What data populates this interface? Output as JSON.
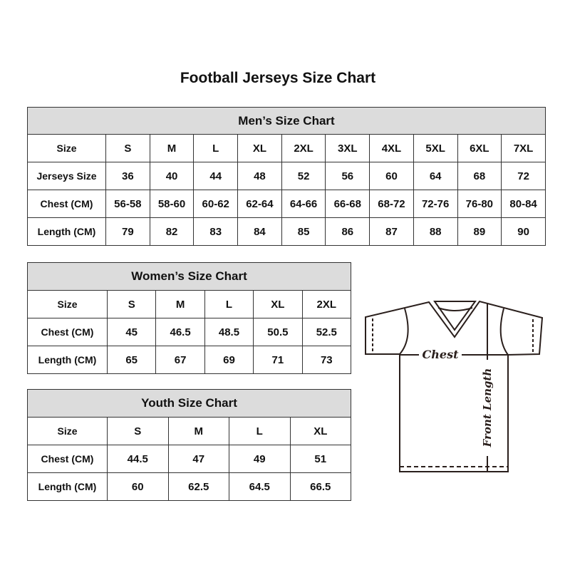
{
  "title": "Football Jerseys Size Chart",
  "men": {
    "heading": "Men’s Size Chart",
    "rows": [
      [
        "Size",
        "S",
        "M",
        "L",
        "XL",
        "2XL",
        "3XL",
        "4XL",
        "5XL",
        "6XL",
        "7XL"
      ],
      [
        "Jerseys Size",
        "36",
        "40",
        "44",
        "48",
        "52",
        "56",
        "60",
        "64",
        "68",
        "72"
      ],
      [
        "Chest (CM)",
        "56-58",
        "58-60",
        "60-62",
        "62-64",
        "64-66",
        "66-68",
        "68-72",
        "72-76",
        "76-80",
        "80-84"
      ],
      [
        "Length (CM)",
        "79",
        "82",
        "83",
        "84",
        "85",
        "86",
        "87",
        "88",
        "89",
        "90"
      ]
    ]
  },
  "women": {
    "heading": "Women’s Size Chart",
    "rows": [
      [
        "Size",
        "S",
        "M",
        "L",
        "XL",
        "2XL"
      ],
      [
        "Chest (CM)",
        "45",
        "46.5",
        "48.5",
        "50.5",
        "52.5"
      ],
      [
        "Length (CM)",
        "65",
        "67",
        "69",
        "71",
        "73"
      ]
    ]
  },
  "youth": {
    "heading": "Youth Size Chart",
    "rows": [
      [
        "Size",
        "S",
        "M",
        "L",
        "XL"
      ],
      [
        "Chest (CM)",
        "44.5",
        "47",
        "49",
        "51"
      ],
      [
        "Length (CM)",
        "60",
        "62.5",
        "64.5",
        "66.5"
      ]
    ]
  },
  "diagram": {
    "chest_label": "Chest",
    "length_label": "Front Length"
  },
  "colors": {
    "header_fill": "#dcdcdc",
    "border": "#333333",
    "line": "#2a1f1c"
  }
}
